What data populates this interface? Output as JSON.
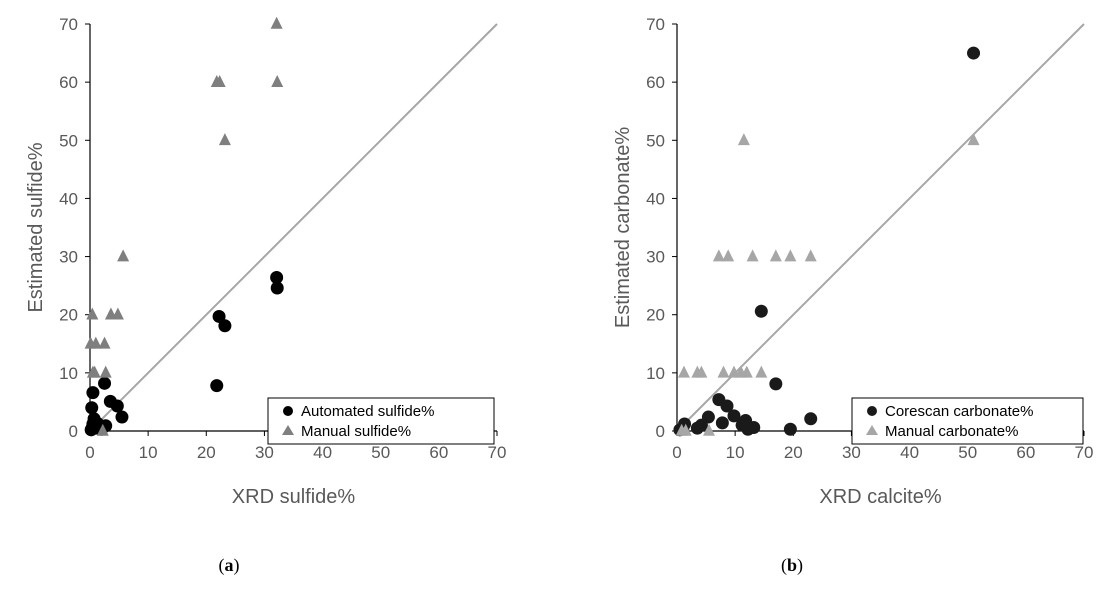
{
  "chart_data": [
    {
      "panel": "a",
      "caption_letter": "a",
      "type": "scatter",
      "xlabel": "XRD sulfide%",
      "ylabel": "Estimated sulfide%",
      "xlim": [
        0,
        70
      ],
      "ylim": [
        0,
        70
      ],
      "ticks": [
        0,
        10,
        20,
        30,
        40,
        50,
        60,
        70
      ],
      "grid": false,
      "reference_line": "y = x",
      "legend_position": "bottom-right",
      "series": [
        {
          "name": "Automated sulfide%",
          "marker": "circle",
          "color": "#000000",
          "points": [
            [
              0.2,
              0.2
            ],
            [
              0.4,
              0.6
            ],
            [
              0.5,
              1.2
            ],
            [
              0.3,
              4.0
            ],
            [
              0.5,
              6.6
            ],
            [
              0.7,
              2.1
            ],
            [
              1.0,
              0.5
            ],
            [
              1.3,
              1.3
            ],
            [
              2.0,
              0.3
            ],
            [
              2.5,
              8.2
            ],
            [
              2.7,
              0.9
            ],
            [
              3.5,
              5.1
            ],
            [
              4.7,
              4.3
            ],
            [
              5.5,
              2.4
            ],
            [
              21.8,
              7.8
            ],
            [
              22.2,
              19.7
            ],
            [
              23.2,
              18.1
            ],
            [
              32.1,
              26.4
            ],
            [
              32.2,
              24.6
            ]
          ]
        },
        {
          "name": "Manual sulfide%",
          "marker": "triangle",
          "color": "#7f7f7f",
          "points": [
            [
              0.1,
              15
            ],
            [
              0.4,
              20
            ],
            [
              0.5,
              10
            ],
            [
              0.8,
              10
            ],
            [
              1.0,
              15
            ],
            [
              2.2,
              0
            ],
            [
              2.5,
              15
            ],
            [
              2.7,
              10
            ],
            [
              3.6,
              20
            ],
            [
              4.8,
              20
            ],
            [
              5.7,
              30
            ],
            [
              21.8,
              60
            ],
            [
              22.3,
              60
            ],
            [
              23.2,
              50
            ],
            [
              32.1,
              70
            ],
            [
              32.2,
              60
            ]
          ]
        }
      ]
    },
    {
      "panel": "b",
      "caption_letter": "b",
      "type": "scatter",
      "xlabel": "XRD calcite%",
      "ylabel": "Estimated carbonate%",
      "xlim": [
        0,
        70
      ],
      "ylim": [
        0,
        70
      ],
      "ticks": [
        0,
        10,
        20,
        30,
        40,
        50,
        60,
        70
      ],
      "grid": false,
      "reference_line": "y = x",
      "legend_position": "bottom-right",
      "series": [
        {
          "name": "Corescan carbonate%",
          "marker": "circle",
          "color": "#1a1a1a",
          "points": [
            [
              0.5,
              0.2
            ],
            [
              1.0,
              0.4
            ],
            [
              1.3,
              1.2
            ],
            [
              3.5,
              0.5
            ],
            [
              4.2,
              1.0
            ],
            [
              5.4,
              2.4
            ],
            [
              7.2,
              5.4
            ],
            [
              7.8,
              1.4
            ],
            [
              8.6,
              4.3
            ],
            [
              9.8,
              2.6
            ],
            [
              11.2,
              1.0
            ],
            [
              11.8,
              1.8
            ],
            [
              12.2,
              0.3
            ],
            [
              13.2,
              0.6
            ],
            [
              14.5,
              20.6
            ],
            [
              17.0,
              8.1
            ],
            [
              19.5,
              0.3
            ],
            [
              23.0,
              2.1
            ],
            [
              51.0,
              65.0
            ]
          ]
        },
        {
          "name": "Manual carbonate%",
          "marker": "triangle",
          "color": "#a6a6a6",
          "points": [
            [
              0.8,
              0
            ],
            [
              1.2,
              10
            ],
            [
              1.5,
              0
            ],
            [
              3.5,
              10
            ],
            [
              4.2,
              10
            ],
            [
              5.5,
              0
            ],
            [
              7.2,
              30
            ],
            [
              8.0,
              10
            ],
            [
              8.8,
              30
            ],
            [
              9.8,
              10
            ],
            [
              11.0,
              10
            ],
            [
              11.5,
              50
            ],
            [
              12.0,
              10
            ],
            [
              13.0,
              30
            ],
            [
              14.5,
              10
            ],
            [
              17.0,
              30
            ],
            [
              19.5,
              30
            ],
            [
              23.0,
              30
            ],
            [
              51.0,
              50
            ]
          ]
        }
      ]
    }
  ]
}
